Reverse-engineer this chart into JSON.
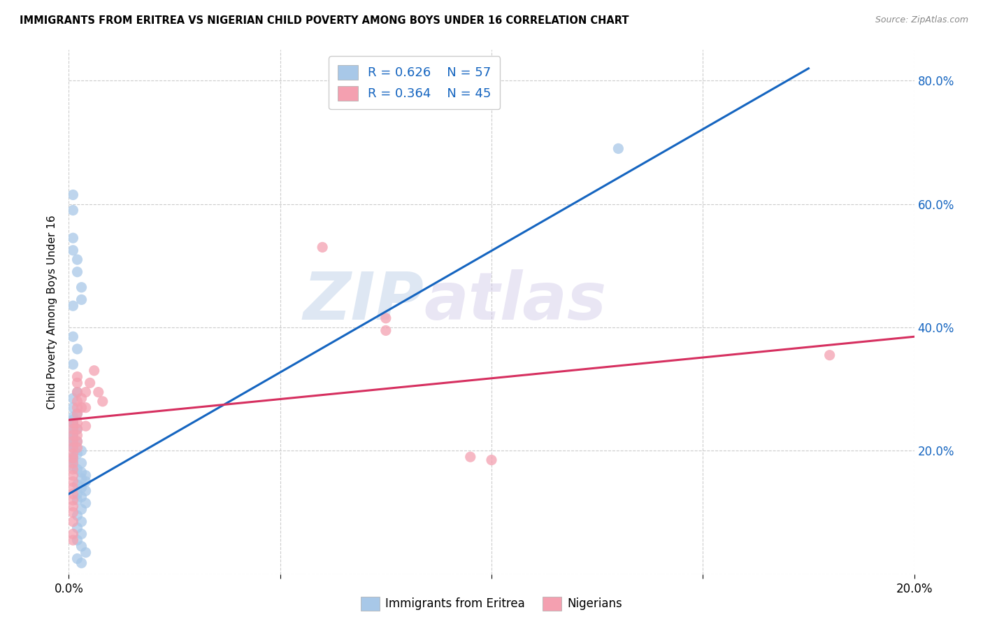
{
  "title": "IMMIGRANTS FROM ERITREA VS NIGERIAN CHILD POVERTY AMONG BOYS UNDER 16 CORRELATION CHART",
  "source": "Source: ZipAtlas.com",
  "ylabel": "Child Poverty Among Boys Under 16",
  "x_min": 0.0,
  "x_max": 0.2,
  "y_min": 0.0,
  "y_max": 0.85,
  "legend1_R": "0.626",
  "legend1_N": "57",
  "legend2_R": "0.364",
  "legend2_N": "45",
  "blue_color": "#a8c8e8",
  "pink_color": "#f4a0b0",
  "blue_line_color": "#1565c0",
  "pink_line_color": "#d63060",
  "blue_scatter": [
    [
      0.001,
      0.615
    ],
    [
      0.001,
      0.59
    ],
    [
      0.001,
      0.545
    ],
    [
      0.001,
      0.525
    ],
    [
      0.002,
      0.51
    ],
    [
      0.002,
      0.49
    ],
    [
      0.001,
      0.435
    ],
    [
      0.001,
      0.385
    ],
    [
      0.002,
      0.365
    ],
    [
      0.001,
      0.34
    ],
    [
      0.003,
      0.465
    ],
    [
      0.003,
      0.445
    ],
    [
      0.002,
      0.295
    ],
    [
      0.001,
      0.285
    ],
    [
      0.001,
      0.27
    ],
    [
      0.002,
      0.26
    ],
    [
      0.001,
      0.255
    ],
    [
      0.001,
      0.25
    ],
    [
      0.001,
      0.245
    ],
    [
      0.001,
      0.24
    ],
    [
      0.002,
      0.235
    ],
    [
      0.001,
      0.23
    ],
    [
      0.001,
      0.225
    ],
    [
      0.001,
      0.22
    ],
    [
      0.001,
      0.218
    ],
    [
      0.002,
      0.215
    ],
    [
      0.001,
      0.21
    ],
    [
      0.001,
      0.205
    ],
    [
      0.003,
      0.2
    ],
    [
      0.002,
      0.195
    ],
    [
      0.001,
      0.19
    ],
    [
      0.001,
      0.185
    ],
    [
      0.003,
      0.18
    ],
    [
      0.001,
      0.175
    ],
    [
      0.002,
      0.17
    ],
    [
      0.003,
      0.165
    ],
    [
      0.004,
      0.16
    ],
    [
      0.003,
      0.155
    ],
    [
      0.004,
      0.15
    ],
    [
      0.002,
      0.145
    ],
    [
      0.003,
      0.14
    ],
    [
      0.004,
      0.135
    ],
    [
      0.002,
      0.13
    ],
    [
      0.003,
      0.125
    ],
    [
      0.002,
      0.12
    ],
    [
      0.004,
      0.115
    ],
    [
      0.003,
      0.105
    ],
    [
      0.002,
      0.095
    ],
    [
      0.003,
      0.085
    ],
    [
      0.002,
      0.075
    ],
    [
      0.003,
      0.065
    ],
    [
      0.002,
      0.055
    ],
    [
      0.003,
      0.045
    ],
    [
      0.004,
      0.035
    ],
    [
      0.002,
      0.025
    ],
    [
      0.003,
      0.018
    ],
    [
      0.13,
      0.69
    ]
  ],
  "pink_scatter": [
    [
      0.001,
      0.245
    ],
    [
      0.001,
      0.235
    ],
    [
      0.001,
      0.225
    ],
    [
      0.001,
      0.215
    ],
    [
      0.001,
      0.205
    ],
    [
      0.001,
      0.195
    ],
    [
      0.001,
      0.188
    ],
    [
      0.001,
      0.18
    ],
    [
      0.001,
      0.17
    ],
    [
      0.001,
      0.16
    ],
    [
      0.001,
      0.15
    ],
    [
      0.001,
      0.14
    ],
    [
      0.001,
      0.13
    ],
    [
      0.001,
      0.12
    ],
    [
      0.001,
      0.11
    ],
    [
      0.001,
      0.1
    ],
    [
      0.001,
      0.085
    ],
    [
      0.001,
      0.065
    ],
    [
      0.001,
      0.055
    ],
    [
      0.002,
      0.32
    ],
    [
      0.002,
      0.31
    ],
    [
      0.002,
      0.295
    ],
    [
      0.002,
      0.28
    ],
    [
      0.002,
      0.27
    ],
    [
      0.002,
      0.26
    ],
    [
      0.002,
      0.245
    ],
    [
      0.002,
      0.235
    ],
    [
      0.002,
      0.225
    ],
    [
      0.002,
      0.215
    ],
    [
      0.002,
      0.205
    ],
    [
      0.003,
      0.285
    ],
    [
      0.003,
      0.27
    ],
    [
      0.004,
      0.295
    ],
    [
      0.004,
      0.27
    ],
    [
      0.004,
      0.24
    ],
    [
      0.005,
      0.31
    ],
    [
      0.006,
      0.33
    ],
    [
      0.007,
      0.295
    ],
    [
      0.008,
      0.28
    ],
    [
      0.06,
      0.53
    ],
    [
      0.075,
      0.415
    ],
    [
      0.075,
      0.395
    ],
    [
      0.095,
      0.19
    ],
    [
      0.1,
      0.185
    ],
    [
      0.18,
      0.355
    ]
  ],
  "blue_trendline_x": [
    0.0,
    0.175
  ],
  "blue_trendline_y": [
    0.13,
    0.82
  ],
  "pink_trendline_x": [
    0.0,
    0.2
  ],
  "pink_trendline_y": [
    0.25,
    0.385
  ],
  "watermark_zip": "ZIP",
  "watermark_atlas": "atlas",
  "bg_color": "#ffffff",
  "grid_color": "#cccccc",
  "right_axis_color": "#1565c0"
}
